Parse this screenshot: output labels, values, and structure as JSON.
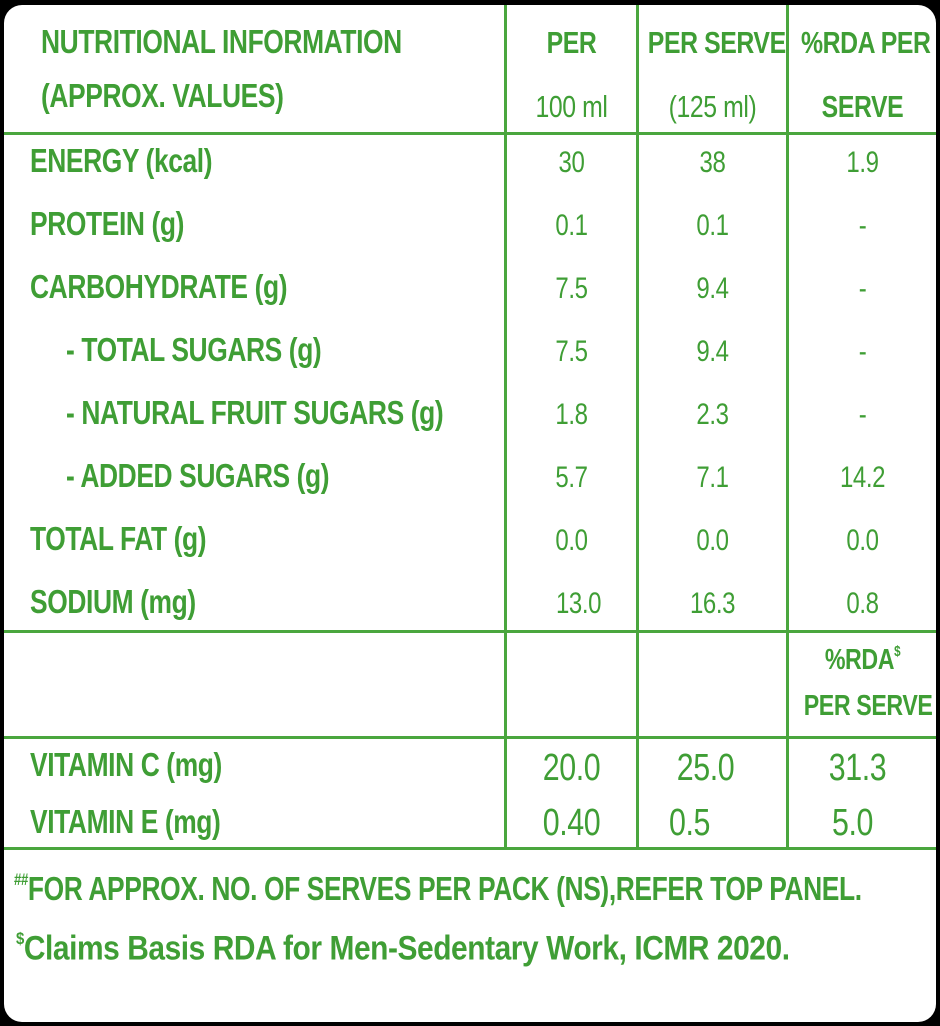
{
  "header": {
    "title_line1": "NUTRITIONAL INFORMATION",
    "title_line2": "(APPROX. VALUES)",
    "col1_line1": "PER",
    "col1_line2": "100 ml",
    "col2_line1": "PER SERVE",
    "col2_line2": "(125 ml)",
    "col3_line1": "%RDA PER",
    "col3_line2": "SERVE"
  },
  "rows": [
    {
      "label": "ENERGY (kcal)",
      "per100": "30",
      "perServe": "38",
      "rda": "1.9"
    },
    {
      "label": "PROTEIN (g)",
      "per100": "0.1",
      "perServe": "0.1",
      "rda": "-"
    },
    {
      "label": "CARBOHYDRATE (g)",
      "per100": "7.5",
      "perServe": "9.4",
      "rda": "-"
    },
    {
      "label": "- TOTAL SUGARS (g)",
      "per100": "7.5",
      "perServe": "9.4",
      "rda": "-"
    },
    {
      "label": "- NATURAL FRUIT SUGARS (g)",
      "per100": "1.8",
      "perServe": "2.3",
      "rda": "-"
    },
    {
      "label": "- ADDED SUGARS (g)",
      "per100": "5.7",
      "perServe": "7.1",
      "rda": "14.2"
    },
    {
      "label": "TOTAL FAT (g)",
      "per100": "0.0",
      "perServe": "0.0",
      "rda": "0.0"
    },
    {
      "label": "SODIUM (mg)",
      "per100": "13.0",
      "perServe": "16.3",
      "rda": "0.8"
    }
  ],
  "vitamin_header": {
    "line1": "%RDA",
    "line1_sup": "$",
    "line2": "PER SERVE"
  },
  "vitamins": [
    {
      "label": "VITAMIN C (mg)",
      "per100": "20.0",
      "perServe": "25.0",
      "rda": "31.3"
    },
    {
      "label": "VITAMIN E (mg)",
      "per100": "0.40",
      "perServe": "0.5",
      "rda": "5.0"
    }
  ],
  "footer": {
    "note1_sup": "##",
    "note1": "FOR APPROX. NO. OF SERVES PER PACK (NS),REFER TOP PANEL.",
    "note2_sup": "$",
    "note2": "Claims Basis RDA for Men-Sedentary Work, ICMR 2020."
  },
  "colors": {
    "text": "#3f9e35",
    "lines": "#4aa63e",
    "background": "#ffffff"
  }
}
